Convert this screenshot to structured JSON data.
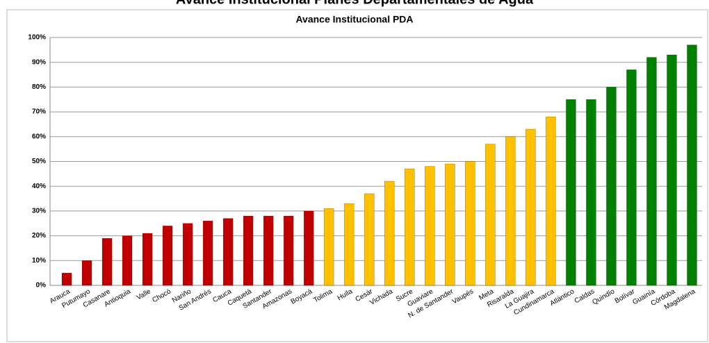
{
  "chart_data": {
    "type": "bar",
    "title": "Avance Institucional Planes Departamentales de Agua",
    "subtitle": "Avance Institucional PDA",
    "categories": [
      "Arauca",
      "Putumayo",
      "Casanare",
      "Antioquia",
      "Valle",
      "Chocó",
      "Nariño",
      "San Andrés",
      "Cauca",
      "Caquetá",
      "Santander",
      "Amazonas",
      "Boyacá",
      "Tolima",
      "Huila",
      "Cesár",
      "Vichada",
      "Sucre",
      "Guaviare",
      "N. de Santander",
      "Vaupés",
      "Meta",
      "Risaralda",
      "La Guajira",
      "Cundinamarca",
      "Atlántico",
      "Caldas",
      "Quindío",
      "Bolívar",
      "Guainía",
      "Córdoba",
      "Magdalena"
    ],
    "values": [
      5,
      10,
      19,
      20,
      21,
      24,
      25,
      26,
      27,
      28,
      28,
      28,
      30,
      31,
      33,
      37,
      42,
      47,
      48,
      49,
      50,
      57,
      60,
      63,
      68,
      75,
      75,
      80,
      87,
      92,
      93,
      97
    ],
    "colors": [
      "#c00000",
      "#c00000",
      "#c00000",
      "#c00000",
      "#c00000",
      "#c00000",
      "#c00000",
      "#c00000",
      "#c00000",
      "#c00000",
      "#c00000",
      "#c00000",
      "#c00000",
      "#ffc000",
      "#ffc000",
      "#ffc000",
      "#ffc000",
      "#ffc000",
      "#ffc000",
      "#ffc000",
      "#ffc000",
      "#ffc000",
      "#ffc000",
      "#ffc000",
      "#ffc000",
      "#008000",
      "#008000",
      "#008000",
      "#008000",
      "#008000",
      "#008000",
      "#008000"
    ],
    "ylim": [
      0,
      100
    ],
    "yticks": [
      {
        "value": 0,
        "label": "0%"
      },
      {
        "value": 10,
        "label": "10%"
      },
      {
        "value": 20,
        "label": "20%"
      },
      {
        "value": 30,
        "label": "30%"
      },
      {
        "value": 40,
        "label": "40%"
      },
      {
        "value": 50,
        "label": "50%"
      },
      {
        "value": 60,
        "label": "60%"
      },
      {
        "value": 70,
        "label": "70%"
      },
      {
        "value": 80,
        "label": "80%"
      },
      {
        "value": 90,
        "label": "90%"
      },
      {
        "value": 100,
        "label": "100%"
      }
    ],
    "grid": true
  }
}
